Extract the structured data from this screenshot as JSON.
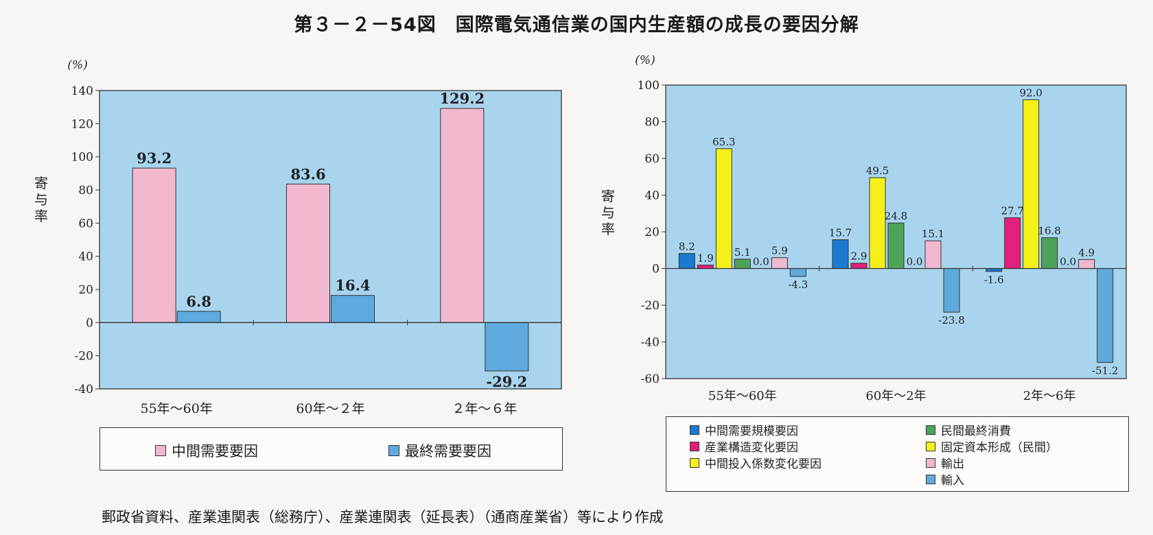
{
  "title": "第３－２－54図　国際電気通信業の国内生産額の成長の要因分解",
  "source": "郵政省資料、産業連関表（総務庁）、産業連関表（延長表）（通商産業省）等により作成",
  "colors": {
    "plot_bg": "#a8d4ee",
    "pink": "#f2b8cf",
    "blue_light": "#5eaadd",
    "blue": "#1a7ad0",
    "magenta": "#e0207a",
    "yellow": "#f6f01a",
    "green": "#4ea35a"
  },
  "chart_data": [
    {
      "type": "bar",
      "ylabel": "寄与率",
      "unit": "(%)",
      "ylim": [
        -40,
        140
      ],
      "yticks": [
        140,
        120,
        100,
        80,
        60,
        40,
        20,
        0,
        -20,
        -40
      ],
      "categories": [
        "55年〜60年",
        "60年〜２年",
        "２年〜６年"
      ],
      "series": [
        {
          "name": "中間需要要因",
          "color": "#f2b8cf",
          "values": [
            93.2,
            83.6,
            129.2
          ]
        },
        {
          "name": "最終需要要因",
          "color": "#5eaadd",
          "values": [
            6.8,
            16.4,
            -29.2
          ]
        }
      ],
      "value_labels": [
        [
          "93.2",
          "83.6",
          "129.2"
        ],
        [
          "6.8",
          "16.4",
          "-29.2"
        ]
      ],
      "legend_position": "bottom"
    },
    {
      "type": "bar",
      "ylabel": "寄与率",
      "unit": "(%)",
      "ylim": [
        -60,
        100
      ],
      "yticks": [
        100,
        80,
        60,
        40,
        20,
        0,
        -20,
        -40,
        -60
      ],
      "categories": [
        "55年〜60年",
        "60年〜2年",
        "2年〜6年"
      ],
      "series": [
        {
          "name": "中間需要規模要因",
          "color": "#1a7ad0",
          "values": [
            8.2,
            15.7,
            -1.6
          ]
        },
        {
          "name": "産業構造変化要因",
          "color": "#e0207a",
          "values": [
            1.9,
            2.9,
            27.7
          ]
        },
        {
          "name": "中間投入係数変化要因",
          "color": "#f6f01a",
          "values": [
            65.3,
            49.5,
            92.0
          ]
        },
        {
          "name": "民間最終消費",
          "color": "#4ea35a",
          "values": [
            5.1,
            24.8,
            16.8
          ]
        },
        {
          "name": "固定資本形成（民間）",
          "color": "#f6f01a",
          "values": [
            0.0,
            0.0,
            0.0
          ]
        },
        {
          "name": "輸出",
          "color": "#f2b8cf",
          "values": [
            5.9,
            15.1,
            4.9
          ]
        },
        {
          "name": "輸入",
          "color": "#5eaadd",
          "values": [
            -4.3,
            -23.8,
            -51.2
          ]
        }
      ],
      "value_labels": [
        [
          "8.2",
          "15.7",
          "-1.6"
        ],
        [
          "1.9",
          "2.9",
          "27.7"
        ],
        [
          "65.3",
          "49.5",
          "92.0"
        ],
        [
          "5.1",
          "24.8",
          "16.8"
        ],
        [
          "0.0",
          "0.0",
          "0.0"
        ],
        [
          "5.9",
          "15.1",
          "4.9"
        ],
        [
          "-4.3",
          "-23.8",
          "-51.2"
        ]
      ],
      "legend_position": "bottom"
    }
  ]
}
